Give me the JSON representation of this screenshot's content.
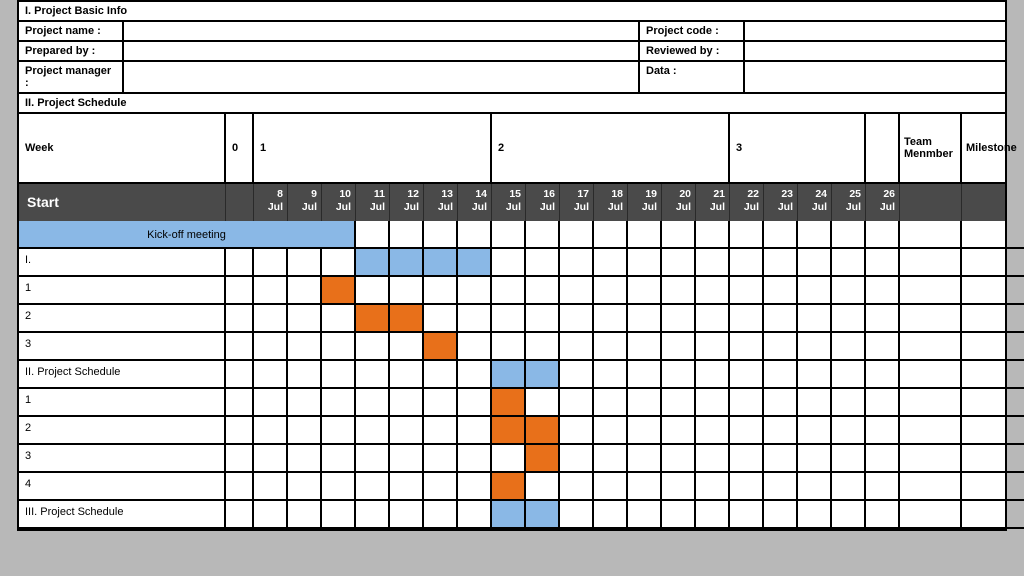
{
  "sections": {
    "basic_info_title": "I. Project Basic Info",
    "schedule_title": "II. Project Schedule"
  },
  "info_fields": {
    "project_name": "Project name :",
    "project_code": "Project code :",
    "prepared_by": "Prepared by :",
    "reviewed_by": "Reviewed by :",
    "project_manager": "Project manager :",
    "data": "Data :"
  },
  "week_header": {
    "label": "Week",
    "groups": [
      "0",
      "1",
      "2",
      "3"
    ],
    "team_member": "Team Menmber",
    "milestone": "Milestone"
  },
  "day_header": {
    "start_label": "Start",
    "days": [
      "8",
      "9",
      "10",
      "11",
      "12",
      "13",
      "14",
      "15",
      "16",
      "17",
      "18",
      "19",
      "20",
      "21",
      "22",
      "23",
      "24",
      "25",
      "26"
    ],
    "month": "Jul",
    "bg_color": "#4a4a4a",
    "text_color": "#ffffff"
  },
  "tasks": [
    {
      "label": "Kick-off meeting",
      "kickoff": true
    },
    {
      "label": "I.",
      "bars": [
        {
          "start": 3,
          "span": 4,
          "color": "blue"
        }
      ]
    },
    {
      "label": "1",
      "bars": [
        {
          "start": 2,
          "span": 1,
          "color": "orange"
        }
      ]
    },
    {
      "label": "2",
      "bars": [
        {
          "start": 3,
          "span": 2,
          "color": "orange"
        }
      ]
    },
    {
      "label": "3",
      "bars": [
        {
          "start": 5,
          "span": 1,
          "color": "orange"
        }
      ]
    },
    {
      "label": "II. Project Schedule",
      "bars": [
        {
          "start": 7,
          "span": 2,
          "color": "blue"
        }
      ]
    },
    {
      "label": "1",
      "bars": [
        {
          "start": 7,
          "span": 1,
          "color": "orange"
        }
      ]
    },
    {
      "label": "2",
      "bars": [
        {
          "start": 7,
          "span": 2,
          "color": "orange"
        }
      ]
    },
    {
      "label": "3",
      "bars": [
        {
          "start": 8,
          "span": 1,
          "color": "orange"
        }
      ]
    },
    {
      "label": "4",
      "bars": [
        {
          "start": 7,
          "span": 1,
          "color": "orange"
        }
      ]
    },
    {
      "label": "III. Project Schedule",
      "bars": [
        {
          "start": 7,
          "span": 2,
          "color": "blue"
        }
      ]
    }
  ],
  "layout": {
    "task_col_width": 207,
    "day_col_width": 34,
    "team_col_width": 62,
    "milestone_col_width": 72,
    "num_days": 19,
    "zero_col_width": 28,
    "week1_span": 7,
    "week2_span": 7,
    "week3_span": 4
  },
  "colors": {
    "blue": "#8ab8e6",
    "orange": "#e8701a",
    "header_dark": "#4a4a4a",
    "page_bg": "#b8b8b8"
  }
}
